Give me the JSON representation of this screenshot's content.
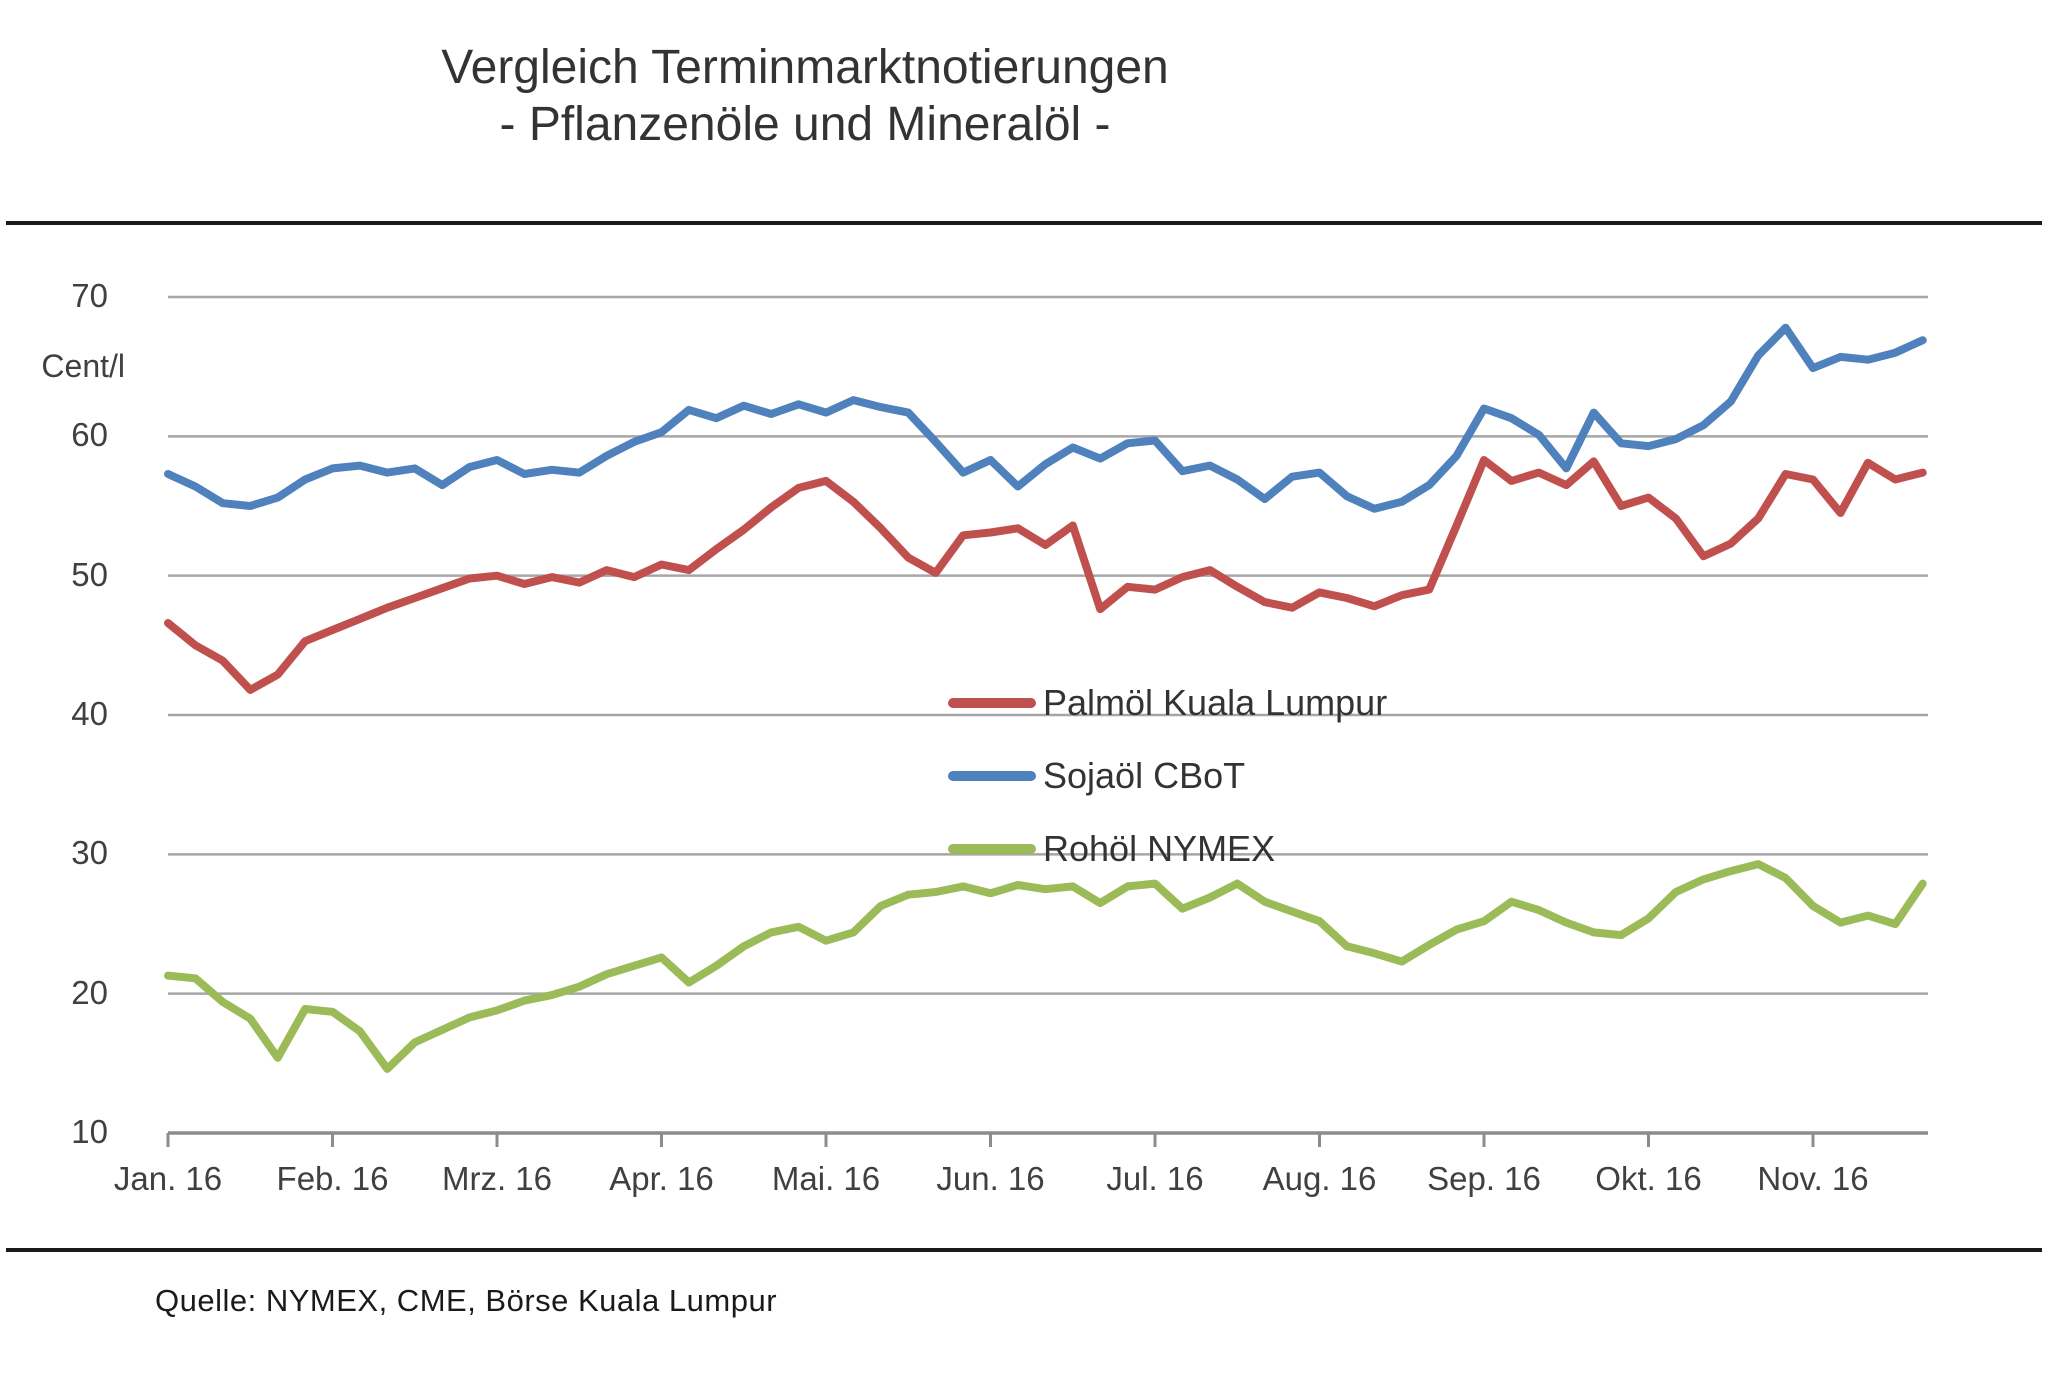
{
  "title": {
    "line1": "Vergleich Terminmarktnotierungen",
    "line2": "- Pflanzenöle  und Mineralöl -"
  },
  "source": "Quelle: NYMEX, CME, Börse Kuala  Lumpur",
  "legend": [
    {
      "label": "Palmöl Kuala Lumpur",
      "color": "#C0504D"
    },
    {
      "label": "Sojaöl CBoT",
      "color": "#4F81BD"
    },
    {
      "label": "Rohöl NYMEX",
      "color": "#9BBB59"
    }
  ],
  "colors": {
    "palmoel": "#C0504D",
    "sojaoel": "#4F81BD",
    "rohoel": "#9BBB59",
    "gridline": "#A6A6A6",
    "axis": "#8C8C8C",
    "text": "#404040",
    "rule": "#1A1A1A"
  },
  "chart_data": {
    "type": "line",
    "title": "Vergleich Terminmarktnotierungen - Pflanzenöle und Mineralöl -",
    "xlabel": "",
    "ylabel": "Cent/l",
    "ylim": [
      10,
      70
    ],
    "yticks": [
      10,
      20,
      30,
      40,
      50,
      60,
      70
    ],
    "grid": "horizontal",
    "legend_position": "inside-center",
    "x_tick_labels": [
      "Jan. 16",
      "Feb. 16",
      "Mrz. 16",
      "Apr. 16",
      "Mai. 16",
      "Jun. 16",
      "Jul. 16",
      "Aug. 16",
      "Sep. 16",
      "Okt. 16",
      "Nov. 16"
    ],
    "x_unit": "months since 1 Jan 2016",
    "x_start": 0,
    "x_step": 0.16667,
    "series": [
      {
        "name": "Palmöl Kuala Lumpur",
        "color": "#C0504D",
        "values": [
          46.6,
          45.0,
          43.9,
          41.8,
          42.9,
          45.3,
          46.1,
          46.9,
          47.7,
          48.4,
          49.1,
          49.8,
          50.0,
          49.4,
          49.9,
          49.5,
          50.4,
          49.9,
          50.8,
          50.4,
          51.9,
          53.3,
          54.9,
          56.3,
          56.8,
          55.3,
          53.4,
          51.3,
          50.2,
          52.9,
          53.1,
          53.4,
          52.2,
          53.6,
          47.6,
          49.2,
          49.0,
          49.9,
          50.4,
          49.2,
          48.1,
          47.7,
          48.8,
          48.4,
          47.8,
          48.6,
          49.0,
          53.6,
          58.3,
          56.8,
          57.4,
          56.5,
          58.2,
          55.0,
          55.6,
          54.1,
          51.4,
          52.3,
          54.1,
          57.3,
          56.9,
          54.5,
          58.1,
          56.9,
          57.4
        ]
      },
      {
        "name": "Sojaöl CBoT",
        "color": "#4F81BD",
        "values": [
          57.3,
          56.4,
          55.2,
          55.0,
          55.6,
          56.9,
          57.7,
          57.9,
          57.4,
          57.7,
          56.5,
          57.8,
          58.3,
          57.3,
          57.6,
          57.4,
          58.6,
          59.6,
          60.3,
          61.9,
          61.3,
          62.2,
          61.6,
          62.3,
          61.7,
          62.6,
          62.1,
          61.7,
          59.6,
          57.4,
          58.3,
          56.4,
          58.0,
          59.2,
          58.4,
          59.5,
          59.7,
          57.5,
          57.9,
          56.9,
          55.5,
          57.1,
          57.4,
          55.7,
          54.8,
          55.3,
          56.5,
          58.6,
          62.0,
          61.3,
          60.1,
          57.7,
          61.7,
          59.5,
          59.3,
          59.8,
          60.8,
          62.5,
          65.8,
          67.8,
          64.9,
          65.7,
          65.5,
          66.0,
          66.9
        ]
      },
      {
        "name": "Rohöl NYMEX",
        "color": "#9BBB59",
        "values": [
          21.3,
          21.1,
          19.4,
          18.2,
          15.4,
          18.9,
          18.7,
          17.3,
          14.6,
          16.5,
          17.4,
          18.3,
          18.8,
          19.5,
          19.9,
          20.5,
          21.4,
          22.0,
          22.6,
          20.8,
          22.0,
          23.4,
          24.4,
          24.8,
          23.8,
          24.4,
          26.3,
          27.1,
          27.3,
          27.7,
          27.2,
          27.8,
          27.5,
          27.7,
          26.5,
          27.7,
          27.9,
          26.1,
          26.9,
          27.9,
          26.6,
          25.9,
          25.2,
          23.4,
          22.9,
          22.3,
          23.5,
          24.6,
          25.2,
          26.6,
          26.0,
          25.1,
          24.4,
          24.2,
          25.4,
          27.3,
          28.2,
          28.8,
          29.3,
          28.3,
          26.3,
          25.1,
          25.6,
          25.0,
          27.9
        ]
      }
    ]
  }
}
